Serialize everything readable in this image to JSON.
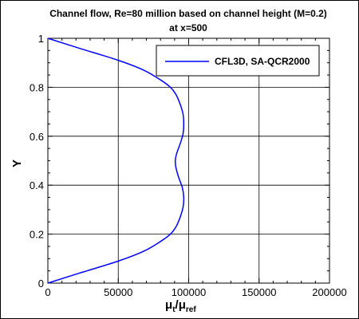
{
  "chart_data": {
    "type": "line",
    "title": "Channel flow, Re=80 million based on channel height (M=0.2)",
    "subtitle": "at x=500",
    "xlabel": {
      "main": "μ",
      "sub1": "t",
      "sep": "/μ",
      "sub2": "ref"
    },
    "ylabel": "Y",
    "xlim": [
      0,
      200000
    ],
    "ylim": [
      0,
      1
    ],
    "xticks": [
      0,
      50000,
      100000,
      150000,
      200000
    ],
    "xtick_labels": [
      "0",
      "50000",
      "100000",
      "150000",
      "200000"
    ],
    "yticks": [
      0,
      0.2,
      0.4,
      0.6,
      0.8,
      1
    ],
    "ytick_labels": [
      "0",
      "0.2",
      "0.4",
      "0.6",
      "0.8",
      "1"
    ],
    "grid": true,
    "legend_position": "top-right",
    "series": [
      {
        "name": "CFL3D, SA-QCR2000",
        "color": "#0000ff",
        "x": [
          0,
          22000,
          50000,
          68000,
          80000,
          87000,
          91000,
          94000,
          96000,
          96500,
          95500,
          93000,
          91000,
          90500,
          91500,
          94000,
          96000,
          96500,
          96000,
          94000,
          91000,
          87000,
          80000,
          68000,
          50000,
          22000,
          0
        ],
        "y": [
          0,
          0.04,
          0.09,
          0.13,
          0.17,
          0.2,
          0.23,
          0.27,
          0.31,
          0.35,
          0.39,
          0.43,
          0.47,
          0.5,
          0.53,
          0.57,
          0.61,
          0.65,
          0.69,
          0.73,
          0.77,
          0.8,
          0.83,
          0.87,
          0.91,
          0.96,
          1
        ]
      }
    ]
  }
}
